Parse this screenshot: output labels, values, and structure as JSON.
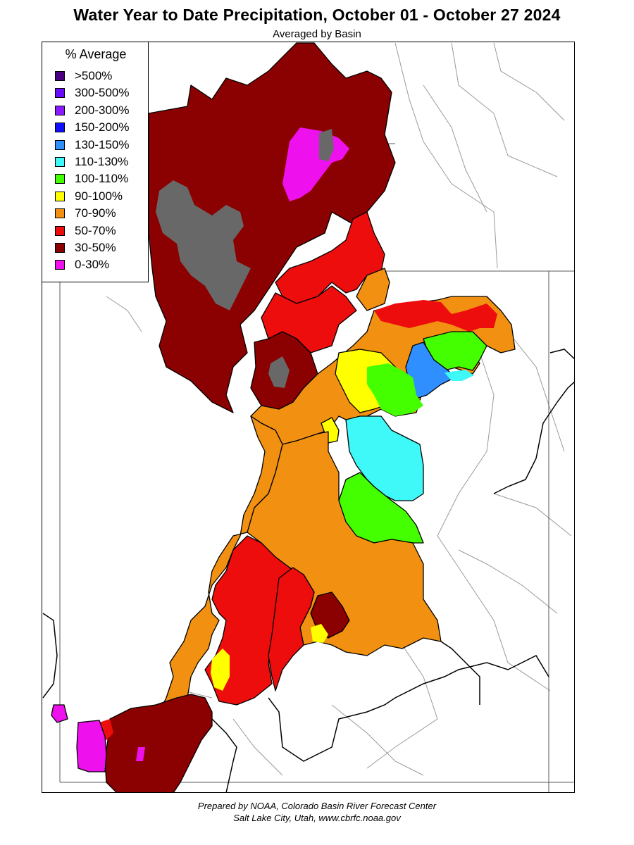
{
  "header": {
    "title": "Water Year to Date Precipitation, October 01  - October 27 2024",
    "subtitle": "Averaged by Basin"
  },
  "legend": {
    "title": "% Average",
    "items": [
      {
        "label": ">500%",
        "color": "#4b0082"
      },
      {
        "label": "300-500%",
        "color": "#6a0dff"
      },
      {
        "label": "200-300%",
        "color": "#8a1aff"
      },
      {
        "label": "150-200%",
        "color": "#1010ff"
      },
      {
        "label": "130-150%",
        "color": "#2f8fff"
      },
      {
        "label": "110-130%",
        "color": "#3ff8f8"
      },
      {
        "label": "100-110%",
        "color": "#44ff00"
      },
      {
        "label": "90-100%",
        "color": "#ffff00"
      },
      {
        "label": "70-90%",
        "color": "#f29111"
      },
      {
        "label": "50-70%",
        "color": "#ee0d0d"
      },
      {
        "label": "30-50%",
        "color": "#8b0000"
      },
      {
        "label": "0-30%",
        "color": "#ee11ee"
      }
    ]
  },
  "map": {
    "no_data_color": "#686868"
  },
  "footer": {
    "line1": "Prepared by NOAA, Colorado Basin River Forecast Center",
    "line2": "Salt Lake City, Utah, www.cbrfc.noaa.gov"
  }
}
